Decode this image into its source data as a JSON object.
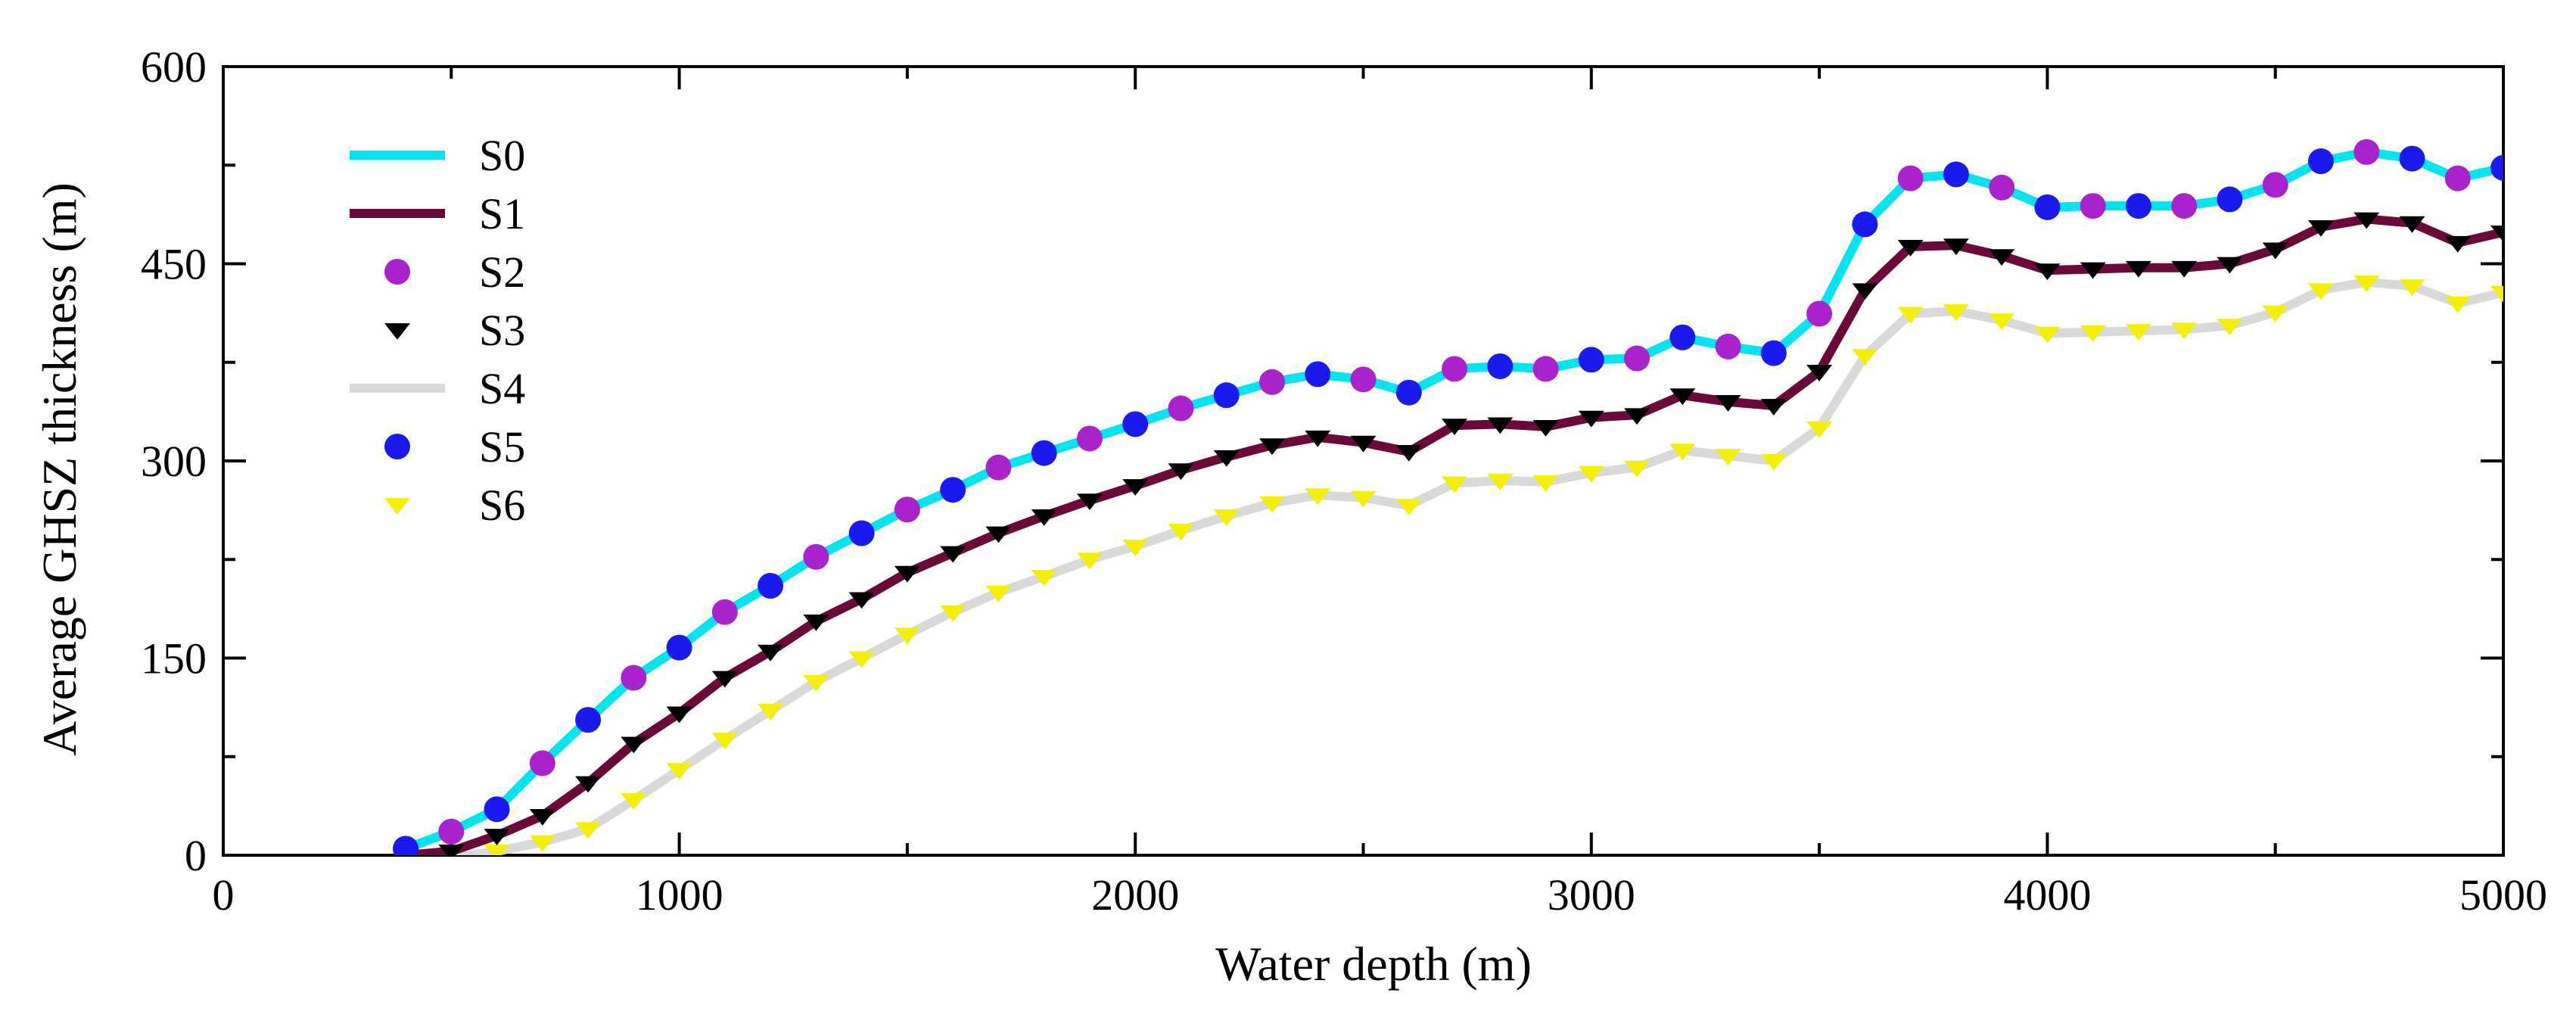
{
  "chart_data": {
    "type": "line",
    "title": "",
    "xlabel": "Water depth (m)",
    "ylabel": "Average GHSZ thickness (m)",
    "xlim": [
      0,
      5000
    ],
    "ylim": [
      0,
      600
    ],
    "x_ticks": [
      0,
      1000,
      2000,
      3000,
      4000,
      5000
    ],
    "y_ticks": [
      0,
      150,
      300,
      450,
      600
    ],
    "x_tick_labels": [
      "0",
      "1000",
      "2000",
      "3000",
      "4000",
      "5000"
    ],
    "y_tick_labels": [
      "0",
      "150",
      "300",
      "450",
      "600"
    ],
    "legend_position": "top-left",
    "x": [
      400,
      500,
      600,
      700,
      800,
      900,
      1000,
      1100,
      1200,
      1300,
      1400,
      1500,
      1600,
      1700,
      1800,
      1900,
      2000,
      2100,
      2200,
      2300,
      2400,
      2500,
      2600,
      2700,
      2800,
      2900,
      3000,
      3100,
      3200,
      3300,
      3400,
      3500,
      3600,
      3700,
      3800,
      3900,
      4000,
      4100,
      4200,
      4300,
      4400,
      4500,
      4600,
      4700,
      4800,
      4900,
      5000
    ],
    "series": [
      {
        "name": "S0",
        "style": "line",
        "color": "#00e5ee",
        "values": [
          5,
          18,
          35,
          70,
          103,
          135,
          158,
          185,
          205,
          227,
          245,
          263,
          278,
          295,
          306,
          317,
          328,
          340,
          350,
          360,
          366,
          362,
          352,
          370,
          372,
          370,
          377,
          378,
          394,
          387,
          382,
          412,
          480,
          515,
          518,
          508,
          493,
          494,
          494,
          494,
          499,
          510,
          528,
          535,
          530,
          515,
          523
        ]
      },
      {
        "name": "S1",
        "style": "line",
        "color": "#6b0a3a",
        "values": [
          0,
          3,
          15,
          30,
          55,
          85,
          108,
          135,
          155,
          178,
          195,
          215,
          230,
          245,
          258,
          270,
          281,
          293,
          303,
          312,
          318,
          314,
          307,
          327,
          328,
          326,
          333,
          335,
          350,
          345,
          342,
          368,
          430,
          463,
          464,
          456,
          445,
          446,
          447,
          447,
          450,
          461,
          478,
          484,
          481,
          466,
          474
        ]
      },
      {
        "name": "S2",
        "style": "marker-circle",
        "color": "#aa22cc",
        "marker_indices_start": 1,
        "values": [
          5,
          18,
          35,
          70,
          103,
          135,
          158,
          185,
          205,
          227,
          245,
          263,
          278,
          295,
          306,
          317,
          328,
          340,
          350,
          360,
          366,
          362,
          352,
          370,
          372,
          370,
          377,
          378,
          394,
          387,
          382,
          412,
          480,
          515,
          518,
          508,
          493,
          494,
          494,
          494,
          499,
          510,
          528,
          535,
          530,
          515,
          523
        ]
      },
      {
        "name": "S3",
        "style": "marker-triangle-down",
        "color": "#000000",
        "values": [
          0,
          3,
          15,
          30,
          55,
          85,
          108,
          135,
          155,
          178,
          195,
          215,
          230,
          245,
          258,
          270,
          281,
          293,
          303,
          312,
          318,
          314,
          307,
          327,
          328,
          326,
          333,
          335,
          350,
          345,
          342,
          368,
          430,
          463,
          464,
          456,
          445,
          446,
          447,
          447,
          450,
          461,
          478,
          484,
          481,
          466,
          474
        ]
      },
      {
        "name": "S4",
        "style": "line",
        "color": "#d9d9d9",
        "values": [
          -5,
          -2,
          3,
          10,
          20,
          42,
          65,
          88,
          110,
          132,
          150,
          168,
          185,
          200,
          212,
          225,
          235,
          247,
          258,
          268,
          274,
          272,
          266,
          283,
          285,
          284,
          291,
          295,
          308,
          304,
          300,
          325,
          380,
          412,
          414,
          407,
          397,
          398,
          399,
          400,
          403,
          413,
          430,
          436,
          433,
          420,
          428
        ]
      },
      {
        "name": "S5",
        "style": "marker-circle",
        "color": "#1a1aee",
        "marker_indices_start": 0,
        "values": [
          5,
          18,
          35,
          70,
          103,
          135,
          158,
          185,
          205,
          227,
          245,
          263,
          278,
          295,
          306,
          317,
          328,
          340,
          350,
          360,
          366,
          362,
          352,
          370,
          372,
          370,
          377,
          378,
          394,
          387,
          382,
          412,
          480,
          515,
          518,
          508,
          493,
          494,
          494,
          494,
          499,
          510,
          528,
          535,
          530,
          515,
          523
        ]
      },
      {
        "name": "S6",
        "style": "marker-triangle-down",
        "color": "#f5f000",
        "values": [
          -5,
          -2,
          3,
          10,
          20,
          42,
          65,
          88,
          110,
          132,
          150,
          168,
          185,
          200,
          212,
          225,
          235,
          247,
          258,
          268,
          274,
          272,
          266,
          283,
          285,
          284,
          291,
          295,
          308,
          304,
          300,
          325,
          380,
          412,
          414,
          407,
          397,
          398,
          399,
          400,
          403,
          413,
          430,
          436,
          433,
          420,
          428
        ]
      }
    ]
  }
}
